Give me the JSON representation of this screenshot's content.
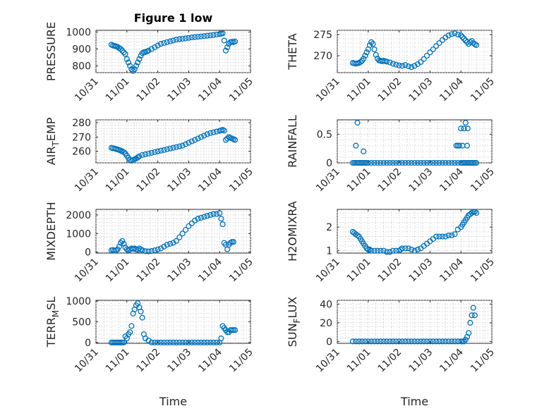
{
  "figure": {
    "title": "Figure 1 low",
    "xlabel": "Time"
  },
  "chart_data": [
    {
      "id": "pressure",
      "type": "scatter",
      "title": "Figure 1 low",
      "ylabel": "PRESSURE",
      "ylim": [
        760,
        1010
      ],
      "yticks": [
        800,
        900,
        1000
      ],
      "xlim": [
        0,
        5
      ],
      "xticks": [
        0,
        1,
        2,
        3,
        4,
        5
      ],
      "xticklabels": [
        "10/31",
        "11/01",
        "11/02",
        "11/03",
        "11/04",
        "11/05"
      ],
      "grid": true,
      "x": [
        0.5,
        0.55,
        0.6,
        0.65,
        0.7,
        0.75,
        0.8,
        0.85,
        0.9,
        0.95,
        1.0,
        1.05,
        1.1,
        1.15,
        1.2,
        1.25,
        1.3,
        1.35,
        1.4,
        1.45,
        1.5,
        1.55,
        1.6,
        1.65,
        1.7,
        1.8,
        1.9,
        2.0,
        2.1,
        2.2,
        2.3,
        2.4,
        2.5,
        2.6,
        2.7,
        2.8,
        2.9,
        3.0,
        3.1,
        3.2,
        3.3,
        3.4,
        3.5,
        3.6,
        3.7,
        3.8,
        3.9,
        4.0,
        4.05,
        4.1,
        4.15,
        4.2,
        4.25,
        4.3,
        4.35,
        4.4,
        4.45,
        4.5
      ],
      "y": [
        925,
        920,
        918,
        915,
        912,
        905,
        900,
        890,
        880,
        870,
        840,
        820,
        800,
        780,
        770,
        780,
        800,
        820,
        840,
        860,
        875,
        880,
        882,
        885,
        890,
        900,
        910,
        920,
        930,
        935,
        940,
        945,
        950,
        955,
        958,
        960,
        962,
        965,
        968,
        970,
        972,
        974,
        976,
        978,
        980,
        982,
        985,
        988,
        990,
        992,
        950,
        890,
        910,
        930,
        940,
        942,
        940,
        944
      ]
    },
    {
      "id": "theta",
      "type": "scatter",
      "ylabel": "THETA",
      "ylim": [
        266,
        276
      ],
      "yticks": [
        270,
        275
      ],
      "xlim": [
        0,
        5
      ],
      "xticks": [
        0,
        1,
        2,
        3,
        4,
        5
      ],
      "xticklabels": [
        "10/31",
        "11/01",
        "11/02",
        "11/03",
        "11/04",
        "11/05"
      ],
      "grid": true,
      "x": [
        0.5,
        0.55,
        0.6,
        0.65,
        0.7,
        0.75,
        0.8,
        0.85,
        0.9,
        0.95,
        1.0,
        1.05,
        1.1,
        1.15,
        1.2,
        1.25,
        1.3,
        1.35,
        1.4,
        1.45,
        1.5,
        1.55,
        1.6,
        1.7,
        1.8,
        1.9,
        2.0,
        2.1,
        2.2,
        2.3,
        2.4,
        2.5,
        2.6,
        2.7,
        2.8,
        2.9,
        3.0,
        3.1,
        3.2,
        3.3,
        3.4,
        3.5,
        3.6,
        3.7,
        3.8,
        3.9,
        4.0,
        4.05,
        4.1,
        4.15,
        4.2,
        4.25,
        4.3,
        4.35,
        4.4,
        4.45,
        4.5
      ],
      "y": [
        268.3,
        268.2,
        268.1,
        268.2,
        268.3,
        268.5,
        268.8,
        269.3,
        270.0,
        270.8,
        271.5,
        272.5,
        273.2,
        272.8,
        271.5,
        270.2,
        269.3,
        268.9,
        268.8,
        268.7,
        268.8,
        268.7,
        268.6,
        268.4,
        268.1,
        267.9,
        267.7,
        267.6,
        267.8,
        267.5,
        267.3,
        267.6,
        268.0,
        268.5,
        269.2,
        270.0,
        270.8,
        271.5,
        272.3,
        273.0,
        273.7,
        274.3,
        274.8,
        275.1,
        275.3,
        275.0,
        274.8,
        274.4,
        274.0,
        273.6,
        273.2,
        272.8,
        273.2,
        273.5,
        273.0,
        272.7,
        272.5
      ]
    },
    {
      "id": "air_temp",
      "type": "scatter",
      "ylabel": "AIR_TEMP",
      "ylim": [
        252,
        282
      ],
      "yticks": [
        260,
        270,
        280
      ],
      "xlim": [
        0,
        5
      ],
      "xticks": [
        0,
        1,
        2,
        3,
        4,
        5
      ],
      "xticklabels": [
        "10/31",
        "11/01",
        "11/02",
        "11/03",
        "11/04",
        "11/05"
      ],
      "grid": true,
      "x": [
        0.5,
        0.55,
        0.6,
        0.65,
        0.7,
        0.75,
        0.8,
        0.85,
        0.9,
        0.95,
        1.0,
        1.05,
        1.1,
        1.15,
        1.2,
        1.25,
        1.3,
        1.35,
        1.4,
        1.5,
        1.6,
        1.7,
        1.8,
        1.9,
        2.0,
        2.1,
        2.2,
        2.3,
        2.4,
        2.5,
        2.6,
        2.7,
        2.8,
        2.9,
        3.0,
        3.1,
        3.2,
        3.3,
        3.4,
        3.5,
        3.6,
        3.7,
        3.8,
        3.9,
        4.0,
        4.05,
        4.1,
        4.15,
        4.2,
        4.25,
        4.3,
        4.35,
        4.4,
        4.45,
        4.5
      ],
      "y": [
        262.5,
        262.2,
        262.0,
        261.7,
        261.3,
        261.0,
        260.5,
        260.0,
        259.5,
        258.5,
        257.0,
        255.5,
        254.0,
        253.5,
        254.0,
        254.5,
        255.0,
        255.8,
        256.5,
        257.5,
        258.0,
        258.5,
        259.0,
        259.5,
        260.0,
        260.5,
        261.0,
        261.5,
        262.0,
        262.5,
        263.0,
        263.5,
        264.0,
        265.0,
        266.0,
        267.0,
        268.0,
        269.0,
        270.0,
        271.0,
        272.0,
        272.8,
        273.3,
        273.8,
        274.3,
        274.7,
        275.0,
        274.5,
        268.0,
        269.0,
        270.0,
        269.5,
        269.0,
        268.5,
        268.0
      ]
    },
    {
      "id": "rainfall",
      "type": "scatter",
      "ylabel": "RAINFALL",
      "ylim": [
        0,
        0.75
      ],
      "yticks": [
        0,
        0.5
      ],
      "xlim": [
        0,
        5
      ],
      "xticks": [
        0,
        1,
        2,
        3,
        4,
        5
      ],
      "xticklabels": [
        "10/31",
        "11/01",
        "11/02",
        "11/03",
        "11/04",
        "11/05"
      ],
      "grid": true,
      "x": [
        0.5,
        0.55,
        0.6,
        0.65,
        0.7,
        0.75,
        0.8,
        0.85,
        0.9,
        0.95,
        1.0,
        1.1,
        1.2,
        1.3,
        1.4,
        1.5,
        1.6,
        1.7,
        1.8,
        1.9,
        2.0,
        2.1,
        2.2,
        2.3,
        2.4,
        2.5,
        2.6,
        2.7,
        2.8,
        2.9,
        3.0,
        3.1,
        3.2,
        3.3,
        3.4,
        3.5,
        3.6,
        3.7,
        3.8,
        3.9,
        4.0,
        4.05,
        4.1,
        4.15,
        4.2,
        4.25,
        4.3,
        4.35,
        4.4,
        4.45,
        4.5,
        0.6,
        0.65,
        0.85,
        3.85,
        3.9,
        3.95,
        4.0,
        4.05,
        4.1,
        4.15,
        4.2,
        4.22
      ],
      "y": [
        0,
        0,
        0,
        0,
        0,
        0,
        0,
        0,
        0,
        0,
        0,
        0,
        0,
        0,
        0,
        0,
        0,
        0,
        0,
        0,
        0,
        0,
        0,
        0,
        0,
        0,
        0,
        0,
        0,
        0,
        0,
        0,
        0,
        0,
        0,
        0,
        0,
        0,
        0,
        0,
        0,
        0,
        0,
        0,
        0,
        0,
        0,
        0,
        0,
        0,
        0,
        0.3,
        0.7,
        0.2,
        0.3,
        0.3,
        0.3,
        0.6,
        0.3,
        0.6,
        0.7,
        0.3,
        0.6
      ]
    },
    {
      "id": "mixdepth",
      "type": "scatter",
      "ylabel": "MIXDEPTH",
      "ylim": [
        -50,
        2300
      ],
      "yticks": [
        0,
        1000,
        2000
      ],
      "xlim": [
        0,
        5
      ],
      "xticks": [
        0,
        1,
        2,
        3,
        4,
        5
      ],
      "xticklabels": [
        "10/31",
        "11/01",
        "11/02",
        "11/03",
        "11/04",
        "11/05"
      ],
      "grid": true,
      "x": [
        0.5,
        0.55,
        0.6,
        0.65,
        0.7,
        0.75,
        0.8,
        0.85,
        0.9,
        0.95,
        1.0,
        1.05,
        1.1,
        1.15,
        1.2,
        1.25,
        1.3,
        1.35,
        1.4,
        1.45,
        1.5,
        1.6,
        1.7,
        1.8,
        1.9,
        2.0,
        2.1,
        2.2,
        2.3,
        2.4,
        2.5,
        2.6,
        2.7,
        2.8,
        2.9,
        3.0,
        3.1,
        3.2,
        3.3,
        3.4,
        3.5,
        3.6,
        3.7,
        3.8,
        3.9,
        4.0,
        4.05,
        4.1,
        4.15,
        4.2,
        4.25,
        4.3,
        4.35,
        4.4,
        4.45
      ],
      "y": [
        100,
        120,
        80,
        100,
        150,
        300,
        500,
        600,
        450,
        250,
        150,
        100,
        150,
        200,
        180,
        200,
        150,
        120,
        200,
        150,
        100,
        50,
        40,
        60,
        100,
        150,
        200,
        300,
        400,
        450,
        500,
        600,
        800,
        1000,
        1200,
        1400,
        1550,
        1700,
        1800,
        1850,
        1900,
        1950,
        2000,
        2050,
        2050,
        2100,
        1800,
        1500,
        500,
        400,
        150,
        400,
        500,
        550,
        550
      ]
    },
    {
      "id": "h2omixra",
      "type": "scatter",
      "ylabel": "H2OMIXRA",
      "ylim": [
        0.9,
        2.75
      ],
      "yticks": [
        1,
        2
      ],
      "xlim": [
        0,
        5
      ],
      "xticks": [
        0,
        1,
        2,
        3,
        4,
        5
      ],
      "xticklabels": [
        "10/31",
        "11/01",
        "11/02",
        "11/03",
        "11/04",
        "11/05"
      ],
      "grid": true,
      "x": [
        0.5,
        0.55,
        0.6,
        0.65,
        0.7,
        0.75,
        0.8,
        0.85,
        0.9,
        0.95,
        1.0,
        1.05,
        1.1,
        1.2,
        1.3,
        1.4,
        1.5,
        1.6,
        1.7,
        1.8,
        1.9,
        2.0,
        2.05,
        2.1,
        2.2,
        2.3,
        2.4,
        2.5,
        2.6,
        2.7,
        2.8,
        2.9,
        3.0,
        3.1,
        3.2,
        3.3,
        3.4,
        3.5,
        3.6,
        3.7,
        3.8,
        3.9,
        4.0,
        4.05,
        4.1,
        4.15,
        4.2,
        4.25,
        4.3,
        4.35,
        4.4,
        4.45,
        4.5
      ],
      "y": [
        1.8,
        1.75,
        1.7,
        1.65,
        1.6,
        1.5,
        1.4,
        1.3,
        1.2,
        1.1,
        1.05,
        1.05,
        1.0,
        1.0,
        1.0,
        1.0,
        1.0,
        0.95,
        0.95,
        1.0,
        1.0,
        1.0,
        1.05,
        1.1,
        1.1,
        1.1,
        1.05,
        1.0,
        1.05,
        1.1,
        1.2,
        1.3,
        1.4,
        1.5,
        1.6,
        1.6,
        1.6,
        1.6,
        1.65,
        1.65,
        1.7,
        1.9,
        2.0,
        2.1,
        2.2,
        2.3,
        2.4,
        2.5,
        2.55,
        2.6,
        2.65,
        2.65,
        2.6
      ]
    },
    {
      "id": "terr_msl",
      "type": "scatter",
      "ylabel": "TERR_MSL",
      "ylim": [
        -20,
        1020
      ],
      "yticks": [
        0,
        500,
        1000
      ],
      "xlim": [
        0,
        5
      ],
      "xticks": [
        0,
        1,
        2,
        3,
        4,
        5
      ],
      "xticklabels": [
        "10/31",
        "11/01",
        "11/02",
        "11/03",
        "11/04",
        "11/05"
      ],
      "grid": true,
      "x": [
        0.5,
        0.55,
        0.6,
        0.65,
        0.7,
        0.75,
        0.8,
        0.85,
        0.9,
        0.95,
        1.0,
        1.05,
        1.1,
        1.15,
        1.2,
        1.25,
        1.3,
        1.35,
        1.4,
        1.45,
        1.5,
        1.55,
        1.6,
        1.7,
        1.8,
        1.9,
        2.0,
        2.1,
        2.2,
        2.3,
        2.4,
        2.5,
        2.6,
        2.7,
        2.8,
        2.9,
        3.0,
        3.1,
        3.2,
        3.3,
        3.4,
        3.5,
        3.6,
        3.7,
        3.8,
        3.9,
        4.0,
        4.05,
        4.1,
        4.15,
        4.2,
        4.25,
        4.3,
        4.35,
        4.4,
        4.45,
        4.5
      ],
      "y": [
        0,
        0,
        0,
        0,
        0,
        0,
        0,
        0,
        0,
        150,
        100,
        200,
        250,
        400,
        700,
        800,
        900,
        950,
        850,
        750,
        600,
        200,
        100,
        50,
        0,
        0,
        0,
        0,
        0,
        0,
        0,
        0,
        0,
        0,
        0,
        0,
        0,
        0,
        0,
        0,
        0,
        0,
        0,
        0,
        0,
        0,
        0,
        100,
        400,
        350,
        300,
        250,
        250,
        300,
        300,
        300,
        300
      ]
    },
    {
      "id": "sun_flux",
      "type": "scatter",
      "ylabel": "SUN_FLUX",
      "ylim": [
        -2,
        44
      ],
      "yticks": [
        0,
        20,
        40
      ],
      "xlim": [
        0,
        5
      ],
      "xticks": [
        0,
        1,
        2,
        3,
        4,
        5
      ],
      "xticklabels": [
        "10/31",
        "11/01",
        "11/02",
        "11/03",
        "11/04",
        "11/05"
      ],
      "grid": true,
      "x": [
        0.5,
        0.6,
        0.7,
        0.8,
        0.9,
        1.0,
        1.1,
        1.2,
        1.3,
        1.4,
        1.5,
        1.6,
        1.7,
        1.8,
        1.9,
        2.0,
        2.1,
        2.2,
        2.3,
        2.4,
        2.5,
        2.6,
        2.7,
        2.8,
        2.9,
        3.0,
        3.1,
        3.2,
        3.3,
        3.4,
        3.5,
        3.6,
        3.7,
        3.8,
        3.9,
        4.0,
        4.05,
        4.1,
        4.15,
        4.2,
        4.25,
        4.3,
        4.35,
        4.4,
        4.45
      ],
      "y": [
        0,
        0,
        0,
        0,
        0,
        0,
        0,
        0,
        0,
        0,
        0,
        0,
        0,
        0,
        0,
        0,
        0,
        0,
        0,
        0,
        0,
        0,
        0,
        0,
        0,
        0,
        0,
        0,
        0,
        0,
        0,
        0,
        0,
        0,
        0,
        0,
        0,
        0,
        2,
        5,
        9,
        20,
        28,
        36,
        28
      ]
    }
  ]
}
